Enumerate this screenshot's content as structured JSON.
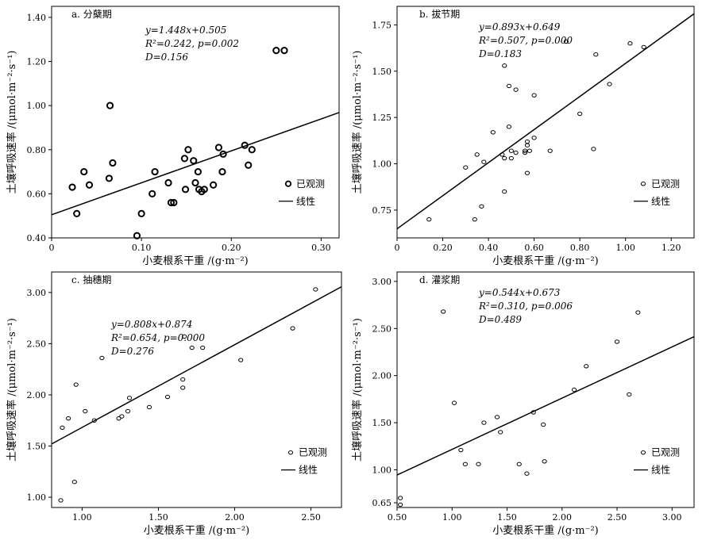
{
  "figure": {
    "ylabel": "土壤呼吸速率 /(μmol·m⁻²·s⁻¹)"
  },
  "chart_data": [
    {
      "type": "scatter",
      "title": "a. 分蘖期",
      "xlabel": "小麦根系干重 /(g·m⁻²)",
      "ylabel": "土壤呼吸速率 /(μmol·m⁻²·s⁻¹)",
      "xlim": [
        0,
        0.32
      ],
      "ylim": [
        0.4,
        1.45
      ],
      "xticks": [
        0,
        0.1,
        0.2,
        0.3
      ],
      "xtick_labels": [
        "0",
        "0.10",
        "0.20",
        "0.30"
      ],
      "yticks": [
        0.4,
        0.6,
        0.8,
        1.0,
        1.2,
        1.4
      ],
      "ytick_labels": [
        "0.40",
        "0.60",
        "0.80",
        "1.00",
        "1.20",
        "1.40"
      ],
      "equation": "y=1.448x+0.505",
      "r2": "R²=0.242, p=0.002",
      "d": "D=0.156",
      "fit": {
        "slope": 1.448,
        "intercept": 0.505
      },
      "legend": {
        "observed": "已观测",
        "linear": "线性",
        "position": "right"
      },
      "marker_weight": "bold",
      "points": [
        [
          0.023,
          0.63
        ],
        [
          0.028,
          0.51
        ],
        [
          0.036,
          0.7
        ],
        [
          0.042,
          0.64
        ],
        [
          0.064,
          0.67
        ],
        [
          0.065,
          1.0
        ],
        [
          0.068,
          0.74
        ],
        [
          0.095,
          0.41
        ],
        [
          0.1,
          0.51
        ],
        [
          0.112,
          0.6
        ],
        [
          0.115,
          0.7
        ],
        [
          0.13,
          0.65
        ],
        [
          0.133,
          0.56
        ],
        [
          0.136,
          0.56
        ],
        [
          0.148,
          0.76
        ],
        [
          0.149,
          0.62
        ],
        [
          0.152,
          0.8
        ],
        [
          0.158,
          0.75
        ],
        [
          0.16,
          0.65
        ],
        [
          0.163,
          0.7
        ],
        [
          0.164,
          0.62
        ],
        [
          0.167,
          0.61
        ],
        [
          0.17,
          0.62
        ],
        [
          0.18,
          0.64
        ],
        [
          0.186,
          0.81
        ],
        [
          0.19,
          0.7
        ],
        [
          0.191,
          0.78
        ],
        [
          0.215,
          0.82
        ],
        [
          0.219,
          0.73
        ],
        [
          0.223,
          0.8
        ],
        [
          0.25,
          1.25
        ],
        [
          0.259,
          1.25
        ]
      ]
    },
    {
      "type": "scatter",
      "title": "b. 拔节期",
      "xlabel": "小麦根系干重 /(g·m⁻²)",
      "ylabel": "土壤呼吸速率 /(μmol·m⁻²·s⁻¹)",
      "xlim": [
        0,
        1.3
      ],
      "ylim": [
        0.6,
        1.85
      ],
      "xticks": [
        0,
        0.2,
        0.4,
        0.6,
        0.8,
        1.0,
        1.2
      ],
      "xtick_labels": [
        "0",
        "0.20",
        "0.40",
        "0.60",
        "0.80",
        "1.00",
        "1.20"
      ],
      "yticks": [
        0.75,
        1.0,
        1.25,
        1.5,
        1.75
      ],
      "ytick_labels": [
        "0.75",
        "1.00",
        "1.25",
        "1.50",
        "1.75"
      ],
      "equation": "y=0.893x+0.649",
      "r2": "R²=0.507, p=0.000",
      "d": "D=0.183",
      "fit": {
        "slope": 0.893,
        "intercept": 0.649
      },
      "legend": {
        "observed": "已观测",
        "linear": "线性",
        "position": "right"
      },
      "marker_weight": "normal",
      "points": [
        [
          0.14,
          0.7
        ],
        [
          0.3,
          0.98
        ],
        [
          0.34,
          0.7
        ],
        [
          0.35,
          1.05
        ],
        [
          0.37,
          0.77
        ],
        [
          0.38,
          1.01
        ],
        [
          0.42,
          1.17
        ],
        [
          0.46,
          1.05
        ],
        [
          0.47,
          1.53
        ],
        [
          0.47,
          1.03
        ],
        [
          0.47,
          0.85
        ],
        [
          0.49,
          1.42
        ],
        [
          0.49,
          1.2
        ],
        [
          0.5,
          1.07
        ],
        [
          0.5,
          1.03
        ],
        [
          0.52,
          1.4
        ],
        [
          0.52,
          1.06
        ],
        [
          0.56,
          1.07
        ],
        [
          0.56,
          1.06
        ],
        [
          0.57,
          1.12
        ],
        [
          0.57,
          1.1
        ],
        [
          0.57,
          0.95
        ],
        [
          0.58,
          1.07
        ],
        [
          0.6,
          1.14
        ],
        [
          0.6,
          1.37
        ],
        [
          0.67,
          1.07
        ],
        [
          0.74,
          1.66
        ],
        [
          0.8,
          1.27
        ],
        [
          0.86,
          1.08
        ],
        [
          0.87,
          1.59
        ],
        [
          0.93,
          1.43
        ],
        [
          1.02,
          1.65
        ],
        [
          1.08,
          1.63
        ]
      ]
    },
    {
      "type": "scatter",
      "title": "c. 抽穗期",
      "xlabel": "小麦根系干重 /(g·m⁻²)",
      "ylabel": "土壤呼吸速率 /(μmol·m⁻²·s⁻¹)",
      "xlim": [
        0.8,
        2.7
      ],
      "ylim": [
        0.9,
        3.2
      ],
      "xticks": [
        1.0,
        1.5,
        2.0,
        2.5
      ],
      "xtick_labels": [
        "1.00",
        "1.50",
        "2.00",
        "2.50"
      ],
      "yticks": [
        1.0,
        1.5,
        2.0,
        2.5,
        3.0
      ],
      "ytick_labels": [
        "1.00",
        "1.50",
        "2.00",
        "2.50",
        "3.00"
      ],
      "equation": "y=0.808x+0.874",
      "r2": "R²=0.654, p=0.000",
      "d": "D=0.276",
      "fit": {
        "slope": 0.808,
        "intercept": 0.874
      },
      "legend": {
        "observed": "已观测",
        "linear": "线性",
        "position": "right"
      },
      "marker_weight": "normal",
      "points": [
        [
          0.86,
          0.97
        ],
        [
          0.87,
          1.68
        ],
        [
          0.91,
          1.77
        ],
        [
          0.95,
          1.15
        ],
        [
          0.96,
          2.1
        ],
        [
          1.02,
          1.84
        ],
        [
          1.08,
          1.75
        ],
        [
          1.13,
          2.36
        ],
        [
          1.24,
          1.77
        ],
        [
          1.26,
          1.79
        ],
        [
          1.3,
          1.84
        ],
        [
          1.31,
          1.97
        ],
        [
          1.44,
          1.88
        ],
        [
          1.56,
          1.98
        ],
        [
          1.66,
          2.15
        ],
        [
          1.66,
          2.07
        ],
        [
          1.67,
          2.57
        ],
        [
          1.72,
          2.46
        ],
        [
          1.79,
          2.46
        ],
        [
          2.04,
          2.34
        ],
        [
          2.38,
          2.65
        ],
        [
          2.53,
          3.03
        ]
      ]
    },
    {
      "type": "scatter",
      "title": "d. 灌浆期",
      "xlabel": "小麦根系干重 /(g·m⁻²)",
      "ylabel": "土壤呼吸速率 /(μmol·m⁻²·s⁻¹)",
      "xlim": [
        0.5,
        3.2
      ],
      "ylim": [
        0.6,
        3.1
      ],
      "xticks": [
        0.5,
        1.0,
        1.5,
        2.0,
        2.5,
        3.0
      ],
      "xtick_labels": [
        "0.50",
        "1.00",
        "1.50",
        "2.00",
        "2.50",
        "3.00"
      ],
      "yticks": [
        0.65,
        1.0,
        1.5,
        2.0,
        2.5,
        3.0
      ],
      "ytick_labels": [
        "0.65",
        "1.00",
        "1.50",
        "2.00",
        "2.50",
        "3.00"
      ],
      "equation": "y=0.544x+0.673",
      "r2": "R²=0.310, p=0.006",
      "d": "D=0.489",
      "fit": {
        "slope": 0.544,
        "intercept": 0.673
      },
      "legend": {
        "observed": "已观测",
        "linear": "线性",
        "position": "right"
      },
      "marker_weight": "normal",
      "points": [
        [
          0.53,
          0.7
        ],
        [
          0.53,
          0.63
        ],
        [
          0.92,
          2.68
        ],
        [
          1.02,
          1.71
        ],
        [
          1.08,
          1.21
        ],
        [
          1.12,
          1.06
        ],
        [
          1.24,
          1.06
        ],
        [
          1.29,
          1.5
        ],
        [
          1.41,
          1.56
        ],
        [
          1.44,
          1.4
        ],
        [
          1.61,
          1.06
        ],
        [
          1.68,
          0.96
        ],
        [
          1.74,
          1.61
        ],
        [
          1.83,
          1.48
        ],
        [
          1.84,
          1.09
        ],
        [
          2.11,
          1.85
        ],
        [
          2.22,
          2.1
        ],
        [
          2.5,
          2.36
        ],
        [
          2.61,
          1.8
        ],
        [
          2.69,
          2.67
        ]
      ]
    }
  ]
}
